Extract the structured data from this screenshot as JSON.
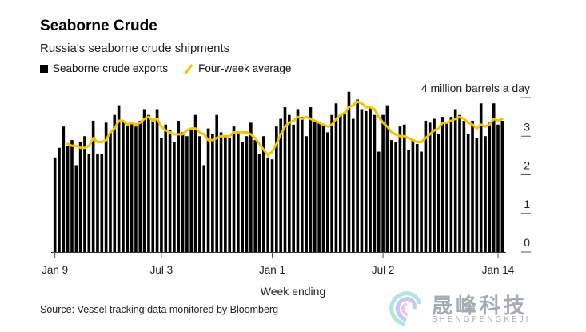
{
  "header": {
    "title": "Seaborne Crude",
    "subtitle": "Russia's seaborne crude shipments"
  },
  "legend": {
    "bars_label": "Seaborne crude exports",
    "line_label": "Four-week average"
  },
  "footer": {
    "xlabel": "Week ending",
    "source": "Source: Vessel tracking data monitored by Bloomberg"
  },
  "watermark": {
    "text": "晟峰科技",
    "sub": "SHENGFENGKEJI"
  },
  "colors": {
    "bars": "#000000",
    "line": "#f5c400",
    "axis": "#333333"
  },
  "chart_data": {
    "type": "bar",
    "title": "Seaborne Crude",
    "subtitle": "Russia's seaborne crude shipments",
    "xlabel": "Week ending",
    "ylabel": "4 million barrels a day",
    "ylim": [
      0,
      4
    ],
    "yticks": [
      0,
      1,
      2,
      3,
      4
    ],
    "ytick_labels": [
      "0",
      "1",
      "2",
      "3",
      "4 million barrels a day"
    ],
    "x_tick_labels": [
      {
        "index": 0,
        "label": "Jan 9"
      },
      {
        "index": 25,
        "label": "Jul 3"
      },
      {
        "index": 51,
        "label": "Jan 1"
      },
      {
        "index": 77,
        "label": "Jul 2"
      },
      {
        "index": 104,
        "label": "Jan 14"
      }
    ],
    "series": [
      {
        "name": "Seaborne crude exports",
        "type": "bar",
        "values": [
          2.45,
          2.7,
          3.25,
          2.75,
          2.9,
          2.25,
          2.85,
          3.0,
          2.55,
          3.4,
          2.55,
          2.55,
          3.35,
          3.1,
          3.55,
          3.8,
          3.4,
          3.3,
          3.35,
          3.25,
          3.4,
          3.7,
          3.55,
          3.45,
          3.7,
          2.95,
          3.3,
          3.15,
          2.85,
          3.4,
          3.1,
          3.0,
          3.2,
          3.55,
          3.0,
          2.25,
          3.2,
          3.05,
          3.55,
          3.1,
          3.0,
          2.95,
          3.25,
          3.1,
          2.85,
          3.0,
          3.35,
          2.9,
          2.55,
          3.0,
          2.45,
          2.4,
          3.25,
          3.45,
          3.75,
          3.55,
          3.3,
          3.7,
          3.5,
          3.0,
          3.75,
          3.4,
          3.35,
          3.3,
          3.1,
          3.55,
          3.85,
          3.55,
          3.6,
          4.15,
          3.45,
          3.95,
          3.7,
          3.65,
          3.75,
          3.55,
          2.6,
          3.55,
          3.8,
          2.9,
          2.85,
          3.25,
          3.3,
          2.65,
          2.9,
          2.8,
          2.6,
          3.4,
          3.35,
          3.45,
          3.05,
          3.5,
          3.35,
          3.5,
          3.7,
          3.55,
          3.4,
          3.05,
          3.4,
          2.95,
          3.85,
          3.0,
          3.35,
          3.85,
          3.3,
          3.4
        ]
      },
      {
        "name": "Four-week average",
        "type": "line",
        "values": [
          null,
          null,
          null,
          2.8,
          2.75,
          2.75,
          2.7,
          2.7,
          2.75,
          2.95,
          2.85,
          2.85,
          2.9,
          3.1,
          3.2,
          3.4,
          3.4,
          3.3,
          3.35,
          3.3,
          3.35,
          3.45,
          3.5,
          3.4,
          3.45,
          3.25,
          3.15,
          3.1,
          3.05,
          3.05,
          3.05,
          3.15,
          3.2,
          3.2,
          3.1,
          3.05,
          2.9,
          2.9,
          2.95,
          3.0,
          3.0,
          3.0,
          3.1,
          3.1,
          3.1,
          3.1,
          3.05,
          2.95,
          2.8,
          2.65,
          2.5,
          2.6,
          2.8,
          3.05,
          3.25,
          3.35,
          3.4,
          3.5,
          3.45,
          3.5,
          3.45,
          3.4,
          3.35,
          3.3,
          3.25,
          3.3,
          3.45,
          3.55,
          3.6,
          3.75,
          3.8,
          3.9,
          3.85,
          3.75,
          3.75,
          3.7,
          3.5,
          3.35,
          3.25,
          3.1,
          3.05,
          3.0,
          3.0,
          2.95,
          2.9,
          2.85,
          2.85,
          2.95,
          3.05,
          3.15,
          3.2,
          3.35,
          3.35,
          3.4,
          3.45,
          3.5,
          3.45,
          3.35,
          3.3,
          3.2,
          3.3,
          3.25,
          3.3,
          3.45,
          3.4,
          3.45
        ]
      }
    ],
    "grid": false,
    "legend_position": "top-left"
  }
}
